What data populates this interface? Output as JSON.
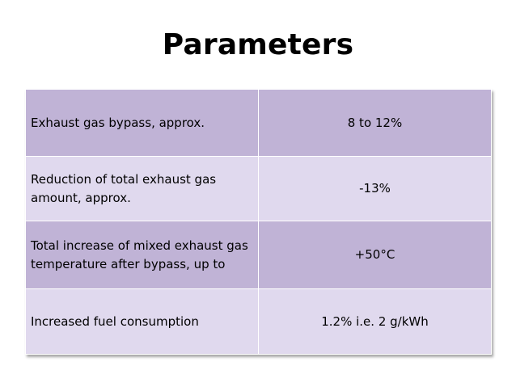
{
  "slide": {
    "title": "Parameters"
  },
  "table": {
    "rows": [
      {
        "parameter": "Exhaust gas bypass, approx.",
        "value": "8 to 12%"
      },
      {
        "parameter": "Reduction of total exhaust gas amount, approx.",
        "value": "-13%"
      },
      {
        "parameter": "Total increase of mixed exhaust gas temperature after bypass, up to",
        "value": "+50°C"
      },
      {
        "parameter": "Increased fuel consumption",
        "value": "1.2% i.e. 2 g/kWh"
      }
    ]
  },
  "colors": {
    "row_dark": "#c0b3d6",
    "row_light": "#e0d9ee",
    "border": "#ffffff"
  }
}
